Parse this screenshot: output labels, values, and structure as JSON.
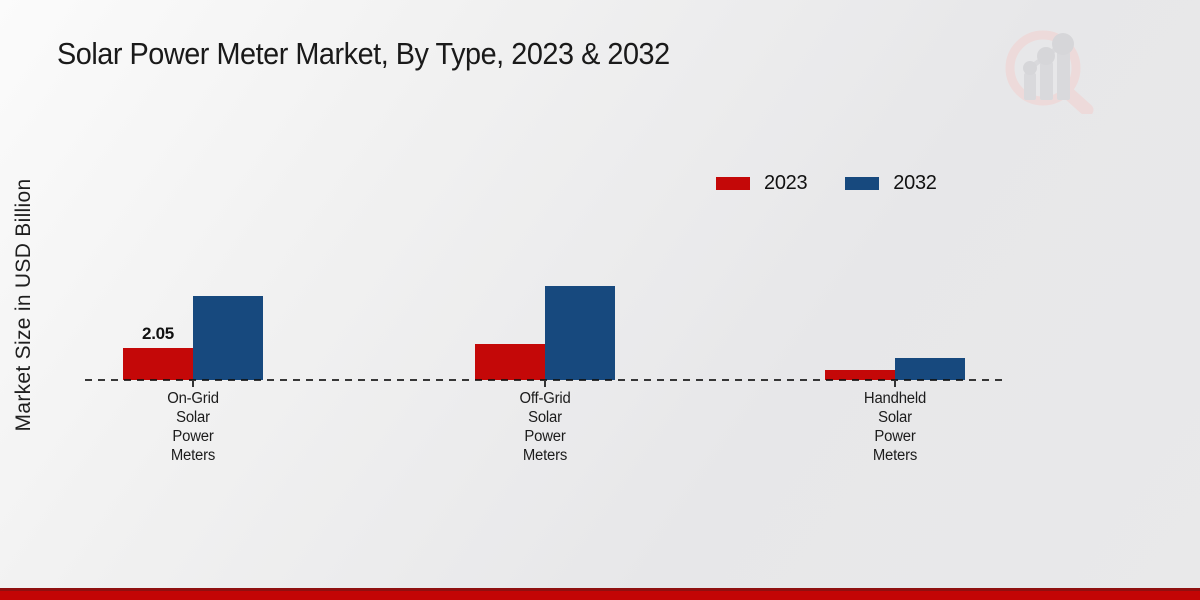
{
  "title": "Solar Power Meter Market, By Type, 2023 & 2032",
  "y_axis_label": "Market Size in USD Billion",
  "legend": {
    "position": "upper-right",
    "items": [
      {
        "label": "2023",
        "color": "#c40808"
      },
      {
        "label": "2032",
        "color": "#17497e"
      }
    ]
  },
  "chart_data": {
    "type": "bar",
    "title": "Solar Power Meter Market, By Type, 2023 & 2032",
    "ylabel": "Market Size in USD Billion",
    "xlabel": "",
    "categories": [
      "On-Grid Solar Power Meters",
      "Off-Grid Solar Power Meters",
      "Handheld Solar Power Meters"
    ],
    "series": [
      {
        "name": "2023",
        "color": "#c40808",
        "values": [
          2.05,
          2.3,
          0.65
        ],
        "value_labels": [
          "2.05",
          "",
          ""
        ]
      },
      {
        "name": "2032",
        "color": "#17497e",
        "values": [
          5.4,
          6.0,
          1.4
        ],
        "value_labels": [
          "",
          "",
          ""
        ]
      }
    ],
    "ylim": [
      0,
      7
    ],
    "grid": false,
    "baseline_style": "dashed",
    "legend_position": "upper right"
  },
  "watermark": {
    "icon": "magnifier-bar-chart-logo"
  },
  "footer": {
    "accent_color": "#c30505",
    "accent_dark_color": "#8f1010"
  }
}
